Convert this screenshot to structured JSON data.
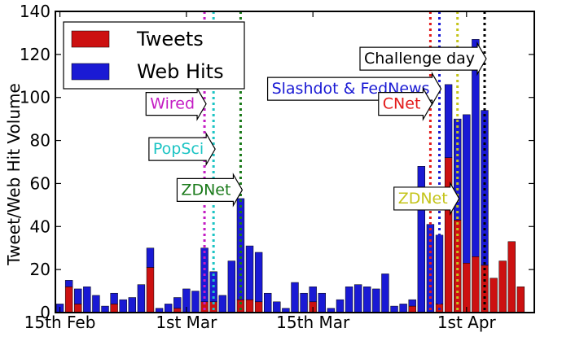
{
  "chart_data": {
    "type": "bar",
    "stacked": true,
    "ylabel": "Tweet/Web Hit Volume",
    "ylim": [
      0,
      140
    ],
    "yticks": [
      0,
      20,
      40,
      60,
      80,
      100,
      120,
      140
    ],
    "xlim": [
      -0.5,
      52.5
    ],
    "xtick_labels": [
      {
        "label": "15th Feb",
        "day": 0
      },
      {
        "label": "1st Mar",
        "day": 14
      },
      {
        "label": "15th Mar",
        "day": 28
      },
      {
        "label": "1st Apr",
        "day": 45
      }
    ],
    "series": [
      {
        "name": "Tweets",
        "color": "#cc1111",
        "values": [
          0,
          12,
          4,
          0,
          0,
          0,
          4,
          0,
          0,
          0,
          21,
          0,
          0,
          2,
          0,
          0,
          5,
          5,
          0,
          0,
          6,
          6,
          5,
          0,
          0,
          0,
          0,
          0,
          5,
          0,
          0,
          0,
          0,
          0,
          0,
          0,
          0,
          0,
          0,
          3,
          0,
          0,
          4,
          72,
          43,
          23,
          26,
          22,
          16,
          24,
          33,
          12
        ]
      },
      {
        "name": "Web Hits",
        "color": "#1a1ad4",
        "values": [
          4,
          3,
          7,
          12,
          8,
          3,
          5,
          6,
          7,
          13,
          9,
          2,
          4,
          5,
          11,
          10,
          25,
          14,
          8,
          24,
          47,
          25,
          23,
          9,
          5,
          2,
          14,
          9,
          7,
          9,
          2,
          6,
          12,
          13,
          12,
          11,
          18,
          3,
          4,
          3,
          68,
          41,
          32,
          34,
          47,
          69,
          101,
          72
        ]
      }
    ],
    "annotations": [
      {
        "label": "Wired",
        "day": 16,
        "color": "#c41cc4",
        "text_y": 97
      },
      {
        "label": "PopSci",
        "day": 17,
        "color": "#1cc4c4",
        "text_y": 76
      },
      {
        "label": "ZDNet",
        "day": 20,
        "color": "#1a7a1a",
        "text_y": 57
      },
      {
        "label": "Slashdot & FedNews",
        "day": 42,
        "color": "#1a1ad4",
        "text_y": 104
      },
      {
        "label": "CNet",
        "day": 41,
        "color": "#e31a1a",
        "text_y": 97
      },
      {
        "label": "ZDNet",
        "day": 44,
        "color": "#c4c41a",
        "text_y": 53
      },
      {
        "label": "Challenge day",
        "day": 47,
        "color": "#000000",
        "text_y": 118
      }
    ]
  }
}
